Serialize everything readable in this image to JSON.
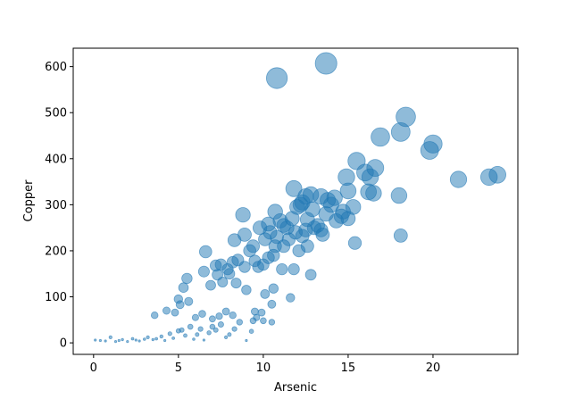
{
  "chart_data": {
    "type": "scatter",
    "title": "",
    "xlabel": "Arsenic",
    "ylabel": "Copper",
    "xlim": [
      -1.2,
      25
    ],
    "ylim": [
      -25,
      640
    ],
    "xticks": [
      0,
      5,
      10,
      15,
      20
    ],
    "yticks": [
      0,
      100,
      200,
      300,
      400,
      500,
      600
    ],
    "grid": false,
    "marker_color": "#1f77b4",
    "marker_alpha": 0.5,
    "size_encoding": "marker area increases with Copper value",
    "points": [
      [
        0.1,
        6
      ],
      [
        0.4,
        5
      ],
      [
        0.7,
        4
      ],
      [
        1.0,
        12
      ],
      [
        1.3,
        3
      ],
      [
        1.5,
        5
      ],
      [
        1.7,
        7
      ],
      [
        2.0,
        3
      ],
      [
        2.3,
        9
      ],
      [
        2.5,
        6
      ],
      [
        2.7,
        4
      ],
      [
        3.0,
        8
      ],
      [
        3.2,
        12
      ],
      [
        3.5,
        7
      ],
      [
        3.7,
        9
      ],
      [
        4.0,
        14
      ],
      [
        4.2,
        5
      ],
      [
        4.5,
        20
      ],
      [
        4.7,
        10
      ],
      [
        5.0,
        26
      ],
      [
        5.2,
        28
      ],
      [
        5.4,
        16
      ],
      [
        5.7,
        35
      ],
      [
        5.9,
        8
      ],
      [
        6.1,
        18
      ],
      [
        6.3,
        30
      ],
      [
        6.5,
        6
      ],
      [
        6.8,
        22
      ],
      [
        7.0,
        35
      ],
      [
        7.2,
        28
      ],
      [
        7.5,
        40
      ],
      [
        7.8,
        12
      ],
      [
        8.0,
        18
      ],
      [
        8.3,
        30
      ],
      [
        8.6,
        45
      ],
      [
        9.0,
        5
      ],
      [
        9.3,
        25
      ],
      [
        9.6,
        55
      ],
      [
        10.0,
        48
      ],
      [
        10.5,
        45
      ],
      [
        3.6,
        60
      ],
      [
        4.3,
        70
      ],
      [
        4.8,
        66
      ],
      [
        5.1,
        83
      ],
      [
        5.6,
        90
      ],
      [
        6.0,
        55
      ],
      [
        6.4,
        63
      ],
      [
        7.0,
        52
      ],
      [
        7.4,
        58
      ],
      [
        7.8,
        68
      ],
      [
        8.2,
        60
      ],
      [
        9.4,
        48
      ],
      [
        9.5,
        68
      ],
      [
        9.9,
        66
      ],
      [
        10.1,
        106
      ],
      [
        10.5,
        84
      ],
      [
        10.6,
        118
      ],
      [
        11.6,
        98
      ],
      [
        5.0,
        95
      ],
      [
        5.3,
        120
      ],
      [
        5.5,
        140
      ],
      [
        6.5,
        155
      ],
      [
        6.9,
        125
      ],
      [
        7.3,
        148
      ],
      [
        7.6,
        132
      ],
      [
        8.0,
        150
      ],
      [
        8.4,
        130
      ],
      [
        9.0,
        115
      ],
      [
        9.7,
        165
      ],
      [
        10.6,
        190
      ],
      [
        6.6,
        198
      ],
      [
        7.2,
        168
      ],
      [
        7.5,
        170
      ],
      [
        7.9,
        160
      ],
      [
        8.2,
        175
      ],
      [
        8.5,
        180
      ],
      [
        8.9,
        165
      ],
      [
        9.2,
        200
      ],
      [
        9.5,
        178
      ],
      [
        10.0,
        170
      ],
      [
        10.3,
        185
      ],
      [
        10.7,
        210
      ],
      [
        11.1,
        160
      ],
      [
        11.8,
        160
      ],
      [
        8.3,
        223
      ],
      [
        8.9,
        235
      ],
      [
        9.4,
        210
      ],
      [
        9.8,
        250
      ],
      [
        10.1,
        225
      ],
      [
        10.4,
        240
      ],
      [
        10.8,
        230
      ],
      [
        11.2,
        255
      ],
      [
        11.5,
        225
      ],
      [
        11.9,
        240
      ],
      [
        12.3,
        232
      ],
      [
        12.6,
        210
      ],
      [
        12.8,
        148
      ],
      [
        11.2,
        210
      ],
      [
        12.1,
        200
      ],
      [
        8.8,
        278
      ],
      [
        10.3,
        258
      ],
      [
        10.7,
        285
      ],
      [
        11.0,
        265
      ],
      [
        11.4,
        250
      ],
      [
        11.7,
        270
      ],
      [
        12.0,
        295
      ],
      [
        12.3,
        305
      ],
      [
        12.6,
        268
      ],
      [
        12.9,
        290
      ],
      [
        13.2,
        255
      ],
      [
        13.4,
        245
      ],
      [
        13.7,
        280
      ],
      [
        14.0,
        300
      ],
      [
        14.3,
        265
      ],
      [
        14.7,
        285
      ],
      [
        15.0,
        270
      ],
      [
        15.3,
        295
      ],
      [
        15.4,
        217
      ],
      [
        11.8,
        335
      ],
      [
        12.2,
        300
      ],
      [
        12.5,
        318
      ],
      [
        12.8,
        322
      ],
      [
        13.4,
        318
      ],
      [
        13.8,
        310
      ],
      [
        14.2,
        315
      ],
      [
        15.0,
        330
      ],
      [
        13.0,
        250
      ],
      [
        13.5,
        235
      ],
      [
        12.5,
        245
      ],
      [
        14.6,
        275
      ],
      [
        14.9,
        360
      ],
      [
        15.5,
        395
      ],
      [
        16.0,
        370
      ],
      [
        16.3,
        360
      ],
      [
        16.6,
        380
      ],
      [
        16.2,
        328
      ],
      [
        16.5,
        325
      ],
      [
        16.9,
        447
      ],
      [
        18.1,
        458
      ],
      [
        18.4,
        491
      ],
      [
        19.8,
        418
      ],
      [
        20.0,
        432
      ],
      [
        21.5,
        355
      ],
      [
        23.3,
        360
      ],
      [
        23.8,
        365
      ],
      [
        18.0,
        320
      ],
      [
        18.1,
        233
      ],
      [
        10.8,
        575
      ],
      [
        13.7,
        607
      ]
    ]
  }
}
